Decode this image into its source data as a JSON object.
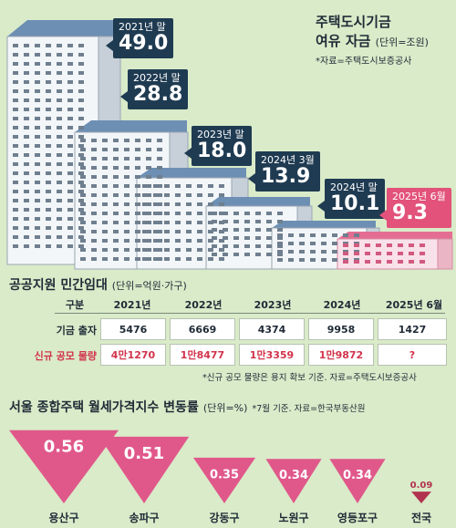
{
  "fund": {
    "title_line1": "주택도시기금",
    "title_line2": "여유 자금",
    "unit": "(단위=조원)",
    "source": "*자료=주택도시보증공사",
    "items": [
      {
        "year": "2021년 말",
        "value": "49.0"
      },
      {
        "year": "2022년 말",
        "value": "28.8"
      },
      {
        "year": "2023년 말",
        "value": "18.0"
      },
      {
        "year": "2024년 3월",
        "value": "13.9"
      },
      {
        "year": "2024년 말",
        "value": "10.1"
      },
      {
        "year": "2025년 6월",
        "value": "9.3"
      }
    ]
  },
  "rental": {
    "title": "공공지원 민간임대",
    "unit": "(단위=억원·가구)",
    "header": [
      "구분",
      "2021년",
      "2022년",
      "2023년",
      "2024년",
      "2025년 6월"
    ],
    "rows": [
      {
        "label": "기금 출자",
        "cells": [
          "5476",
          "6669",
          "4374",
          "9958",
          "1427"
        ]
      },
      {
        "label": "신규 공모 물량",
        "cells": [
          "4만1270",
          "1만8477",
          "1만3359",
          "1만9872",
          "?"
        ]
      }
    ],
    "note": "*신규 공모 물량은 용지 확보 기준. 자료=주택도시보증공사"
  },
  "rent_index": {
    "title": "서울 종합주택 월세가격지수 변동률",
    "unit": "(단위=%)",
    "note": "*7월 기준. 자료=한국부동산원",
    "colors": {
      "seoul": "#e0588a",
      "national": "#b2334f"
    }
  },
  "chart_data": {
    "type": "bar",
    "title": "서울 종합주택 월세가격지수 변동률",
    "ylabel": "(단위=%)",
    "categories": [
      "용산구",
      "송파구",
      "강동구",
      "노원구",
      "영등포구",
      "전국"
    ],
    "values": [
      0.56,
      0.51,
      0.35,
      0.34,
      0.34,
      0.09
    ],
    "value_labels": [
      "0.56",
      "0.51",
      "0.35",
      "0.34",
      "0.34",
      "0.09"
    ],
    "ylim": [
      0,
      0.6
    ],
    "grid": false
  }
}
